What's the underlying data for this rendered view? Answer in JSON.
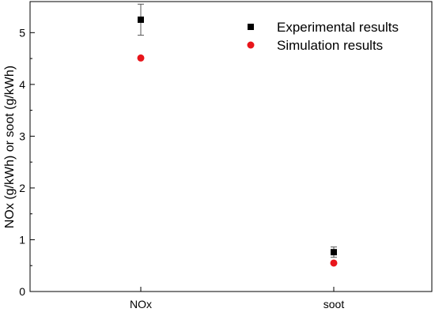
{
  "chart_data": {
    "type": "scatter",
    "title": "",
    "xlabel": "",
    "ylabel": "NOx (g/kWh) or soot (g/kWh)",
    "categories": [
      "NOx",
      "soot"
    ],
    "ylim": [
      0,
      5.6
    ],
    "yticks": [
      "0",
      "1",
      "2",
      "3",
      "4",
      "5"
    ],
    "grid": false,
    "legend_position": "top-right",
    "series": [
      {
        "name": "Experimental results",
        "marker": "square",
        "color": "#000000",
        "values": [
          5.25,
          0.76
        ],
        "error": [
          0.3,
          0.1
        ]
      },
      {
        "name": "Simulation results",
        "marker": "circle",
        "color": "#e8151b",
        "values": [
          4.51,
          0.55
        ]
      }
    ]
  }
}
